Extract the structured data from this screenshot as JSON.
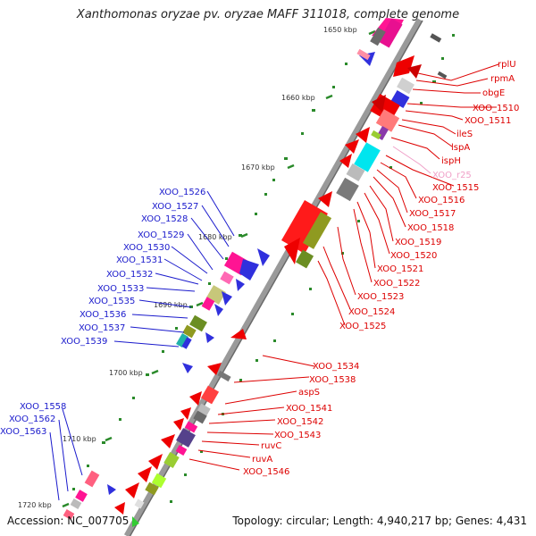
{
  "title": "Xanthomonas oryzae pv. oryzae MAFF 311018, complete genome",
  "accession": "Accession: NC_007705",
  "topology": "Topology: circular; Length: 4,940,217 bp; Genes: 4,431",
  "ticks": [
    "1650 kbp",
    "1660 kbp",
    "1670 kbp",
    "1680 kbp",
    "1690 kbp",
    "1700 kbp",
    "1710 kbp",
    "1720 kbp"
  ],
  "colors": {
    "blue_label": "#1a1acc",
    "red_label": "#dd0000",
    "pink_label": "#f0a0c8"
  },
  "left_labels": [
    "XOO_1526",
    "XOO_1527",
    "XOO_1528",
    "XOO_1529",
    "XOO_1530",
    "XOO_1531",
    "XOO_1532",
    "XOO_1533",
    "XOO_1535",
    "XOO_1536",
    "XOO_1537",
    "XOO_1539",
    "XOO_1558",
    "XOO_1562",
    "XOO_1563"
  ],
  "right_labels": [
    "rplU",
    "rpmA",
    "obgE",
    "XOO_1510",
    "XOO_1511",
    "ileS",
    "lspA",
    "ispH",
    "XOO_r25",
    "XOO_1515",
    "XOO_1516",
    "XOO_1517",
    "XOO_1518",
    "XOO_1519",
    "XOO_1520",
    "XOO_1521",
    "XOO_1522",
    "XOO_1523",
    "XOO_1524",
    "XOO_1525",
    "XOO_1534",
    "XOO_1538",
    "aspS",
    "XOO_1541",
    "XOO_1542",
    "XOO_1543",
    "ruvC",
    "ruvA",
    "XOO_1546"
  ]
}
